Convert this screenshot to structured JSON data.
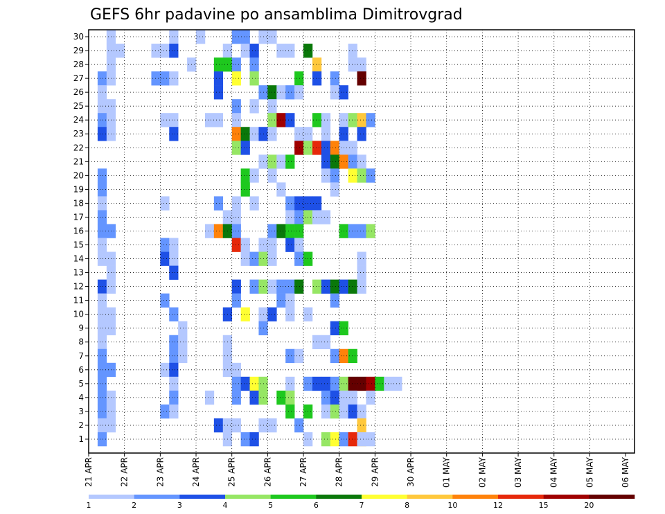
{
  "chart_data": {
    "type": "heatmap",
    "title": "GEFS 6hr padavine po ansamblima Dimitrovgrad",
    "x_tick_labels": [
      "21 APR",
      "22 APR",
      "23 APR",
      "24 APR",
      "25 APR",
      "26 APR",
      "27 APR",
      "28 APR",
      "29 APR",
      "30 APR",
      "01 MAY",
      "02 MAY",
      "03 MAY",
      "04 MAY",
      "05 MAY",
      "06 MAY"
    ],
    "y_range": [
      1,
      30
    ],
    "n_time_steps": 61,
    "grid": "dotted",
    "legend": {
      "placement": "bottom",
      "tick_labels": [
        "1",
        "2",
        "3",
        "4",
        "5",
        "6",
        "7",
        "8",
        "10",
        "12",
        "15",
        "20"
      ],
      "colors": [
        "#b4c8ff",
        "#6495ff",
        "#1e50e6",
        "#96e664",
        "#1ec81e",
        "#0a780a",
        "#ffff32",
        "#ffc83c",
        "#ff820a",
        "#e6280a",
        "#a00000",
        "#640000"
      ]
    },
    "cells": [
      [
        2,
        30,
        1
      ],
      [
        9,
        30,
        1
      ],
      [
        12,
        30,
        1
      ],
      [
        16,
        30,
        2
      ],
      [
        17,
        30,
        2
      ],
      [
        19,
        30,
        1
      ],
      [
        20,
        30,
        1
      ],
      [
        2,
        29,
        1
      ],
      [
        3,
        29,
        1
      ],
      [
        7,
        29,
        1
      ],
      [
        8,
        29,
        1
      ],
      [
        9,
        29,
        3
      ],
      [
        15,
        29,
        1
      ],
      [
        17,
        29,
        1
      ],
      [
        18,
        29,
        3
      ],
      [
        21,
        29,
        1
      ],
      [
        22,
        29,
        1
      ],
      [
        24,
        29,
        6
      ],
      [
        29,
        29,
        1
      ],
      [
        2,
        28,
        1
      ],
      [
        11,
        28,
        1
      ],
      [
        14,
        28,
        5
      ],
      [
        15,
        28,
        5
      ],
      [
        16,
        28,
        2
      ],
      [
        18,
        28,
        2
      ],
      [
        25,
        28,
        8
      ],
      [
        29,
        28,
        1
      ],
      [
        30,
        28,
        1
      ],
      [
        1,
        27,
        2
      ],
      [
        2,
        27,
        1
      ],
      [
        7,
        27,
        2
      ],
      [
        8,
        27,
        2
      ],
      [
        9,
        27,
        1
      ],
      [
        14,
        27,
        3
      ],
      [
        16,
        27,
        7
      ],
      [
        18,
        27,
        4
      ],
      [
        23,
        27,
        5
      ],
      [
        25,
        27,
        3
      ],
      [
        27,
        27,
        2
      ],
      [
        30,
        27,
        12
      ],
      [
        1,
        26,
        1
      ],
      [
        14,
        26,
        3
      ],
      [
        19,
        26,
        2
      ],
      [
        20,
        26,
        6
      ],
      [
        21,
        26,
        1
      ],
      [
        22,
        26,
        2
      ],
      [
        23,
        26,
        1
      ],
      [
        27,
        26,
        1
      ],
      [
        28,
        26,
        3
      ],
      [
        1,
        25,
        1
      ],
      [
        2,
        25,
        1
      ],
      [
        16,
        25,
        2
      ],
      [
        18,
        25,
        1
      ],
      [
        20,
        25,
        1
      ],
      [
        1,
        24,
        2
      ],
      [
        2,
        24,
        1
      ],
      [
        8,
        24,
        1
      ],
      [
        9,
        24,
        1
      ],
      [
        13,
        24,
        1
      ],
      [
        14,
        24,
        1
      ],
      [
        16,
        24,
        1
      ],
      [
        20,
        24,
        4
      ],
      [
        21,
        24,
        11
      ],
      [
        22,
        24,
        3
      ],
      [
        25,
        24,
        5
      ],
      [
        26,
        24,
        1
      ],
      [
        28,
        24,
        1
      ],
      [
        29,
        24,
        4
      ],
      [
        30,
        24,
        8
      ],
      [
        31,
        24,
        2
      ],
      [
        1,
        23,
        3
      ],
      [
        2,
        23,
        1
      ],
      [
        9,
        23,
        3
      ],
      [
        16,
        23,
        9
      ],
      [
        17,
        23,
        6
      ],
      [
        18,
        23,
        1
      ],
      [
        19,
        23,
        3
      ],
      [
        20,
        23,
        1
      ],
      [
        23,
        23,
        1
      ],
      [
        24,
        23,
        1
      ],
      [
        26,
        23,
        1
      ],
      [
        28,
        23,
        3
      ],
      [
        30,
        23,
        3
      ],
      [
        16,
        22,
        4
      ],
      [
        17,
        22,
        3
      ],
      [
        23,
        22,
        11
      ],
      [
        24,
        22,
        4
      ],
      [
        25,
        22,
        10
      ],
      [
        26,
        22,
        3
      ],
      [
        27,
        22,
        9
      ],
      [
        28,
        22,
        1
      ],
      [
        29,
        22,
        1
      ],
      [
        19,
        21,
        1
      ],
      [
        20,
        21,
        4
      ],
      [
        21,
        21,
        1
      ],
      [
        22,
        21,
        5
      ],
      [
        26,
        21,
        3
      ],
      [
        27,
        21,
        6
      ],
      [
        28,
        21,
        9
      ],
      [
        29,
        21,
        2
      ],
      [
        30,
        21,
        1
      ],
      [
        1,
        20,
        2
      ],
      [
        17,
        20,
        5
      ],
      [
        18,
        20,
        1
      ],
      [
        20,
        20,
        1
      ],
      [
        26,
        20,
        1
      ],
      [
        27,
        20,
        2
      ],
      [
        29,
        20,
        7
      ],
      [
        30,
        20,
        4
      ],
      [
        31,
        20,
        2
      ],
      [
        1,
        19,
        2
      ],
      [
        17,
        19,
        5
      ],
      [
        21,
        19,
        1
      ],
      [
        27,
        19,
        1
      ],
      [
        1,
        18,
        1
      ],
      [
        8,
        18,
        1
      ],
      [
        14,
        18,
        2
      ],
      [
        16,
        18,
        1
      ],
      [
        18,
        18,
        1
      ],
      [
        22,
        18,
        2
      ],
      [
        23,
        18,
        3
      ],
      [
        24,
        18,
        3
      ],
      [
        25,
        18,
        3
      ],
      [
        1,
        17,
        2
      ],
      [
        15,
        17,
        1
      ],
      [
        16,
        17,
        1
      ],
      [
        22,
        17,
        1
      ],
      [
        23,
        17,
        2
      ],
      [
        24,
        17,
        4
      ],
      [
        25,
        17,
        1
      ],
      [
        26,
        17,
        1
      ],
      [
        1,
        16,
        2
      ],
      [
        2,
        16,
        2
      ],
      [
        13,
        16,
        1
      ],
      [
        14,
        16,
        9
      ],
      [
        15,
        16,
        6
      ],
      [
        16,
        16,
        2
      ],
      [
        20,
        16,
        2
      ],
      [
        21,
        16,
        6
      ],
      [
        22,
        16,
        5
      ],
      [
        23,
        16,
        5
      ],
      [
        28,
        16,
        5
      ],
      [
        29,
        16,
        2
      ],
      [
        30,
        16,
        2
      ],
      [
        31,
        16,
        4
      ],
      [
        1,
        15,
        1
      ],
      [
        8,
        15,
        2
      ],
      [
        9,
        15,
        1
      ],
      [
        16,
        15,
        10
      ],
      [
        17,
        15,
        1
      ],
      [
        19,
        15,
        1
      ],
      [
        20,
        15,
        1
      ],
      [
        22,
        15,
        3
      ],
      [
        23,
        15,
        1
      ],
      [
        1,
        14,
        1
      ],
      [
        2,
        14,
        1
      ],
      [
        8,
        14,
        3
      ],
      [
        9,
        14,
        1
      ],
      [
        17,
        14,
        1
      ],
      [
        18,
        14,
        2
      ],
      [
        19,
        14,
        4
      ],
      [
        20,
        14,
        1
      ],
      [
        23,
        14,
        2
      ],
      [
        24,
        14,
        5
      ],
      [
        30,
        14,
        1
      ],
      [
        2,
        13,
        1
      ],
      [
        9,
        13,
        3
      ],
      [
        30,
        13,
        1
      ],
      [
        1,
        12,
        3
      ],
      [
        2,
        12,
        1
      ],
      [
        16,
        12,
        3
      ],
      [
        18,
        12,
        2
      ],
      [
        19,
        12,
        4
      ],
      [
        20,
        12,
        1
      ],
      [
        21,
        12,
        2
      ],
      [
        22,
        12,
        2
      ],
      [
        23,
        12,
        6
      ],
      [
        25,
        12,
        4
      ],
      [
        26,
        12,
        3
      ],
      [
        27,
        12,
        6
      ],
      [
        28,
        12,
        3
      ],
      [
        29,
        12,
        6
      ],
      [
        30,
        12,
        1
      ],
      [
        1,
        11,
        1
      ],
      [
        8,
        11,
        2
      ],
      [
        16,
        11,
        2
      ],
      [
        21,
        11,
        2
      ],
      [
        22,
        11,
        1
      ],
      [
        27,
        11,
        2
      ],
      [
        1,
        10,
        1
      ],
      [
        2,
        10,
        1
      ],
      [
        9,
        10,
        2
      ],
      [
        15,
        10,
        3
      ],
      [
        17,
        10,
        7
      ],
      [
        19,
        10,
        1
      ],
      [
        20,
        10,
        3
      ],
      [
        22,
        10,
        1
      ],
      [
        24,
        10,
        1
      ],
      [
        1,
        9,
        1
      ],
      [
        2,
        9,
        1
      ],
      [
        10,
        9,
        1
      ],
      [
        19,
        9,
        2
      ],
      [
        27,
        9,
        3
      ],
      [
        28,
        9,
        5
      ],
      [
        1,
        8,
        1
      ],
      [
        9,
        8,
        2
      ],
      [
        10,
        8,
        1
      ],
      [
        15,
        8,
        1
      ],
      [
        25,
        8,
        1
      ],
      [
        26,
        8,
        1
      ],
      [
        1,
        7,
        2
      ],
      [
        9,
        7,
        2
      ],
      [
        10,
        7,
        1
      ],
      [
        15,
        7,
        1
      ],
      [
        22,
        7,
        2
      ],
      [
        23,
        7,
        1
      ],
      [
        27,
        7,
        2
      ],
      [
        28,
        7,
        9
      ],
      [
        29,
        7,
        5
      ],
      [
        1,
        6,
        2
      ],
      [
        2,
        6,
        2
      ],
      [
        8,
        6,
        1
      ],
      [
        9,
        6,
        3
      ],
      [
        15,
        6,
        1
      ],
      [
        16,
        6,
        1
      ],
      [
        1,
        5,
        2
      ],
      [
        9,
        5,
        1
      ],
      [
        16,
        5,
        2
      ],
      [
        17,
        5,
        3
      ],
      [
        18,
        5,
        7
      ],
      [
        19,
        5,
        4
      ],
      [
        22,
        5,
        1
      ],
      [
        24,
        5,
        2
      ],
      [
        25,
        5,
        3
      ],
      [
        26,
        5,
        3
      ],
      [
        27,
        5,
        2
      ],
      [
        28,
        5,
        4
      ],
      [
        29,
        5,
        12
      ],
      [
        30,
        5,
        12
      ],
      [
        31,
        5,
        11
      ],
      [
        32,
        5,
        5
      ],
      [
        33,
        5,
        1
      ],
      [
        34,
        5,
        1
      ],
      [
        1,
        4,
        2
      ],
      [
        2,
        4,
        1
      ],
      [
        9,
        4,
        2
      ],
      [
        13,
        4,
        1
      ],
      [
        16,
        4,
        2
      ],
      [
        18,
        4,
        3
      ],
      [
        19,
        4,
        4
      ],
      [
        21,
        4,
        5
      ],
      [
        22,
        4,
        4
      ],
      [
        26,
        4,
        2
      ],
      [
        27,
        4,
        3
      ],
      [
        28,
        4,
        1
      ],
      [
        29,
        4,
        1
      ],
      [
        31,
        4,
        1
      ],
      [
        1,
        3,
        2
      ],
      [
        2,
        3,
        1
      ],
      [
        8,
        3,
        2
      ],
      [
        9,
        3,
        1
      ],
      [
        22,
        3,
        5
      ],
      [
        24,
        3,
        5
      ],
      [
        26,
        3,
        1
      ],
      [
        27,
        3,
        4
      ],
      [
        28,
        3,
        1
      ],
      [
        29,
        3,
        3
      ],
      [
        30,
        3,
        1
      ],
      [
        1,
        2,
        1
      ],
      [
        2,
        2,
        1
      ],
      [
        14,
        2,
        3
      ],
      [
        15,
        2,
        1
      ],
      [
        16,
        2,
        1
      ],
      [
        19,
        2,
        1
      ],
      [
        20,
        2,
        1
      ],
      [
        23,
        2,
        2
      ],
      [
        30,
        2,
        8
      ],
      [
        1,
        1,
        2
      ],
      [
        15,
        1,
        1
      ],
      [
        17,
        1,
        2
      ],
      [
        18,
        1,
        3
      ],
      [
        24,
        1,
        1
      ],
      [
        26,
        1,
        4
      ],
      [
        27,
        1,
        7
      ],
      [
        28,
        1,
        2
      ],
      [
        29,
        1,
        10
      ],
      [
        30,
        1,
        8
      ],
      [
        31,
        1,
        1
      ],
      [
        30,
        1,
        1
      ]
    ]
  }
}
